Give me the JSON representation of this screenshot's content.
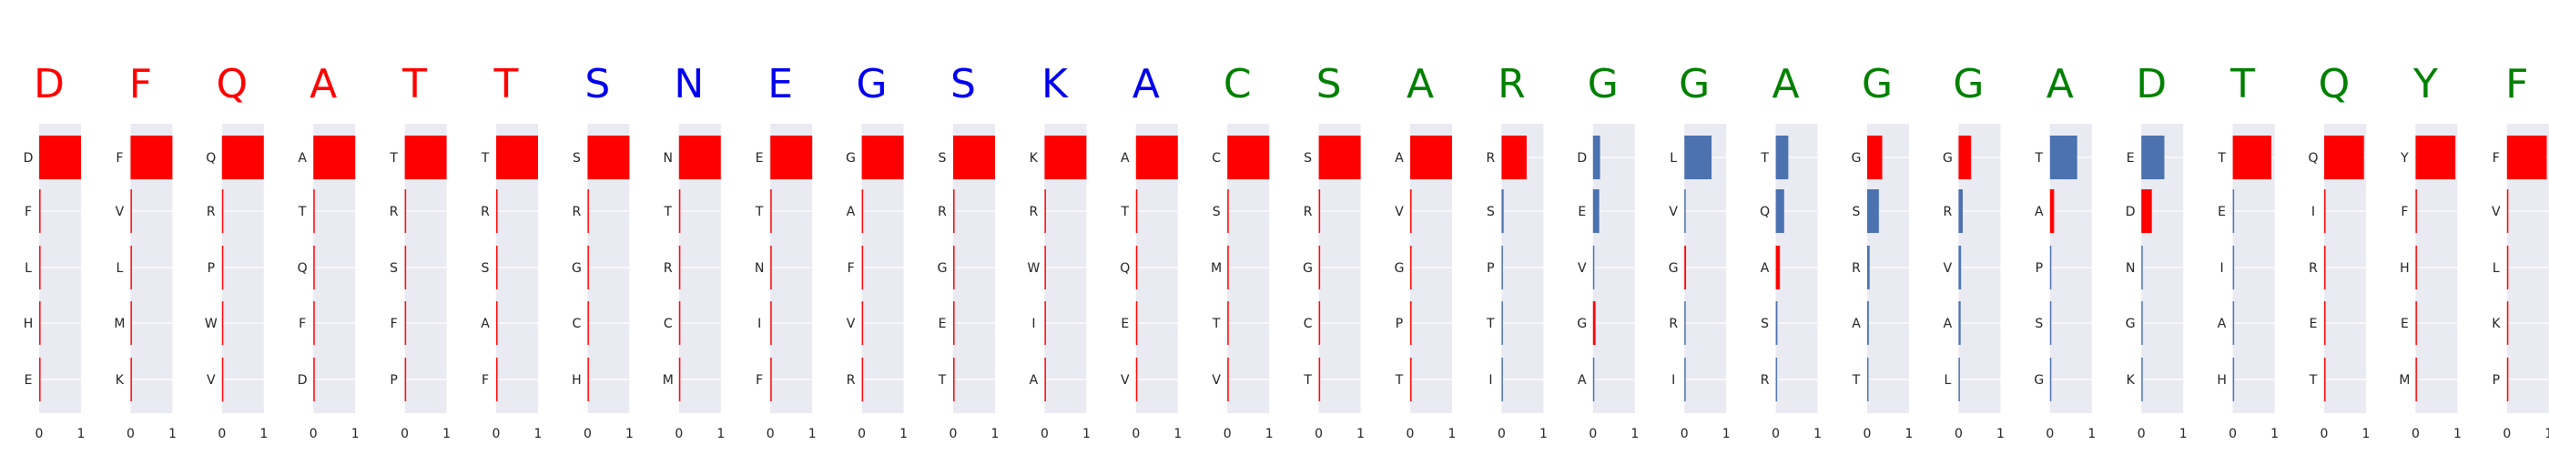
{
  "colors": {
    "red": "#ff0000",
    "blue": "#0000ee",
    "green": "#008000",
    "bar_blue": "#4c72b0",
    "bar_red": "#ff0000",
    "panel_bg": "#eaeaf2",
    "grid": "#ffffff",
    "tick_text": "#222222"
  },
  "chart_data": {
    "type": "bar",
    "orientation": "horizontal",
    "xlim": [
      0,
      1
    ],
    "xticks": [
      "0",
      "1"
    ],
    "grid": true,
    "panels": [
      {
        "header": "D",
        "header_color": "red",
        "labels": [
          "D",
          "F",
          "L",
          "H",
          "E"
        ],
        "values": [
          1,
          0,
          0,
          0,
          0
        ],
        "bar_colors": [
          "red",
          "red",
          "red",
          "red",
          "red"
        ]
      },
      {
        "header": "F",
        "header_color": "red",
        "labels": [
          "F",
          "V",
          "L",
          "M",
          "K"
        ],
        "values": [
          1,
          0,
          0,
          0,
          0
        ],
        "bar_colors": [
          "red",
          "red",
          "red",
          "red",
          "red"
        ]
      },
      {
        "header": "Q",
        "header_color": "red",
        "labels": [
          "Q",
          "R",
          "P",
          "W",
          "V"
        ],
        "values": [
          1,
          0,
          0,
          0,
          0
        ],
        "bar_colors": [
          "red",
          "red",
          "red",
          "red",
          "red"
        ]
      },
      {
        "header": "A",
        "header_color": "red",
        "labels": [
          "A",
          "T",
          "Q",
          "F",
          "D"
        ],
        "values": [
          1,
          0,
          0,
          0,
          0
        ],
        "bar_colors": [
          "red",
          "red",
          "red",
          "red",
          "red"
        ]
      },
      {
        "header": "T",
        "header_color": "red",
        "labels": [
          "T",
          "R",
          "S",
          "F",
          "P"
        ],
        "values": [
          1,
          0,
          0,
          0,
          0
        ],
        "bar_colors": [
          "red",
          "red",
          "red",
          "red",
          "red"
        ]
      },
      {
        "header": "T",
        "header_color": "red",
        "labels": [
          "T",
          "R",
          "S",
          "A",
          "F"
        ],
        "values": [
          1,
          0,
          0,
          0,
          0
        ],
        "bar_colors": [
          "red",
          "red",
          "red",
          "red",
          "red"
        ]
      },
      {
        "header": "S",
        "header_color": "blue",
        "labels": [
          "S",
          "R",
          "G",
          "C",
          "H"
        ],
        "values": [
          1,
          0,
          0,
          0,
          0
        ],
        "bar_colors": [
          "red",
          "red",
          "red",
          "red",
          "red"
        ]
      },
      {
        "header": "N",
        "header_color": "blue",
        "labels": [
          "N",
          "T",
          "R",
          "C",
          "M"
        ],
        "values": [
          1,
          0,
          0,
          0,
          0
        ],
        "bar_colors": [
          "red",
          "red",
          "red",
          "red",
          "red"
        ]
      },
      {
        "header": "E",
        "header_color": "blue",
        "labels": [
          "E",
          "T",
          "N",
          "I",
          "F"
        ],
        "values": [
          1,
          0,
          0,
          0,
          0
        ],
        "bar_colors": [
          "red",
          "red",
          "red",
          "red",
          "red"
        ]
      },
      {
        "header": "G",
        "header_color": "blue",
        "labels": [
          "G",
          "A",
          "F",
          "V",
          "R"
        ],
        "values": [
          1,
          0,
          0,
          0,
          0
        ],
        "bar_colors": [
          "red",
          "red",
          "red",
          "red",
          "red"
        ]
      },
      {
        "header": "S",
        "header_color": "blue",
        "labels": [
          "S",
          "R",
          "G",
          "E",
          "T"
        ],
        "values": [
          1,
          0,
          0,
          0,
          0
        ],
        "bar_colors": [
          "red",
          "red",
          "red",
          "red",
          "red"
        ]
      },
      {
        "header": "K",
        "header_color": "blue",
        "labels": [
          "K",
          "R",
          "W",
          "I",
          "A"
        ],
        "values": [
          1,
          0,
          0,
          0,
          0
        ],
        "bar_colors": [
          "red",
          "red",
          "red",
          "red",
          "red"
        ]
      },
      {
        "header": "A",
        "header_color": "blue",
        "labels": [
          "A",
          "T",
          "Q",
          "E",
          "V"
        ],
        "values": [
          1,
          0,
          0,
          0,
          0
        ],
        "bar_colors": [
          "red",
          "red",
          "red",
          "red",
          "red"
        ]
      },
      {
        "header": "C",
        "header_color": "green",
        "labels": [
          "C",
          "S",
          "M",
          "T",
          "V"
        ],
        "values": [
          1,
          0,
          0,
          0,
          0
        ],
        "bar_colors": [
          "red",
          "red",
          "red",
          "red",
          "red"
        ]
      },
      {
        "header": "S",
        "header_color": "green",
        "labels": [
          "S",
          "R",
          "G",
          "C",
          "T"
        ],
        "values": [
          1,
          0,
          0,
          0,
          0
        ],
        "bar_colors": [
          "red",
          "red",
          "red",
          "red",
          "red"
        ]
      },
      {
        "header": "A",
        "header_color": "green",
        "labels": [
          "A",
          "V",
          "G",
          "P",
          "T"
        ],
        "values": [
          1,
          0,
          0,
          0,
          0
        ],
        "bar_colors": [
          "red",
          "red",
          "red",
          "red",
          "red"
        ]
      },
      {
        "header": "R",
        "header_color": "green",
        "labels": [
          "R",
          "S",
          "P",
          "T",
          "I"
        ],
        "values": [
          0.6,
          0.05,
          0.01,
          0,
          0
        ],
        "bar_colors": [
          "red",
          "bar_blue",
          "bar_blue",
          "bar_blue",
          "bar_blue"
        ]
      },
      {
        "header": "G",
        "header_color": "green",
        "labels": [
          "D",
          "E",
          "V",
          "G",
          "A"
        ],
        "values": [
          0.17,
          0.15,
          0.03,
          0.06,
          0.03
        ],
        "bar_colors": [
          "bar_blue",
          "bar_blue",
          "bar_blue",
          "red",
          "bar_blue"
        ]
      },
      {
        "header": "G",
        "header_color": "green",
        "labels": [
          "L",
          "V",
          "G",
          "R",
          "I"
        ],
        "values": [
          0.65,
          0.02,
          0.04,
          0.01,
          0
        ],
        "bar_colors": [
          "bar_blue",
          "bar_blue",
          "red",
          "bar_blue",
          "bar_blue"
        ]
      },
      {
        "header": "A",
        "header_color": "green",
        "labels": [
          "T",
          "Q",
          "A",
          "S",
          "R"
        ],
        "values": [
          0.3,
          0.2,
          0.1,
          0.04,
          0.03
        ],
        "bar_colors": [
          "bar_blue",
          "bar_blue",
          "red",
          "bar_blue",
          "bar_blue"
        ]
      },
      {
        "header": "G",
        "header_color": "green",
        "labels": [
          "G",
          "S",
          "R",
          "A",
          "T"
        ],
        "values": [
          0.36,
          0.28,
          0.06,
          0.04,
          0.03
        ],
        "bar_colors": [
          "red",
          "bar_blue",
          "bar_blue",
          "bar_blue",
          "bar_blue"
        ]
      },
      {
        "header": "G",
        "header_color": "green",
        "labels": [
          "G",
          "R",
          "V",
          "A",
          "L"
        ],
        "values": [
          0.3,
          0.1,
          0.06,
          0.05,
          0.03
        ],
        "bar_colors": [
          "red",
          "bar_blue",
          "bar_blue",
          "bar_blue",
          "bar_blue"
        ]
      },
      {
        "header": "A",
        "header_color": "green",
        "labels": [
          "T",
          "A",
          "P",
          "S",
          "G"
        ],
        "values": [
          0.65,
          0.1,
          0.01,
          0,
          0
        ],
        "bar_colors": [
          "bar_blue",
          "red",
          "bar_blue",
          "bar_blue",
          "bar_blue"
        ]
      },
      {
        "header": "D",
        "header_color": "green",
        "labels": [
          "E",
          "D",
          "N",
          "G",
          "K"
        ],
        "values": [
          0.55,
          0.25,
          0.02,
          0,
          0
        ],
        "bar_colors": [
          "bar_blue",
          "red",
          "bar_blue",
          "bar_blue",
          "bar_blue"
        ]
      },
      {
        "header": "T",
        "header_color": "green",
        "labels": [
          "T",
          "E",
          "I",
          "A",
          "H"
        ],
        "values": [
          0.92,
          0.02,
          0,
          0,
          0
        ],
        "bar_colors": [
          "red",
          "bar_blue",
          "bar_blue",
          "bar_blue",
          "bar_blue"
        ]
      },
      {
        "header": "Q",
        "header_color": "green",
        "labels": [
          "Q",
          "I",
          "R",
          "E",
          "T"
        ],
        "values": [
          0.95,
          0,
          0,
          0,
          0
        ],
        "bar_colors": [
          "red",
          "red",
          "red",
          "red",
          "red"
        ]
      },
      {
        "header": "Y",
        "header_color": "green",
        "labels": [
          "Y",
          "F",
          "H",
          "E",
          "M"
        ],
        "values": [
          0.95,
          0,
          0,
          0,
          0
        ],
        "bar_colors": [
          "red",
          "red",
          "red",
          "red",
          "red"
        ]
      },
      {
        "header": "F",
        "header_color": "green",
        "labels": [
          "F",
          "V",
          "L",
          "K",
          "P"
        ],
        "values": [
          0.95,
          0,
          0,
          0,
          0
        ],
        "bar_colors": [
          "red",
          "red",
          "red",
          "red",
          "red"
        ]
      }
    ]
  }
}
